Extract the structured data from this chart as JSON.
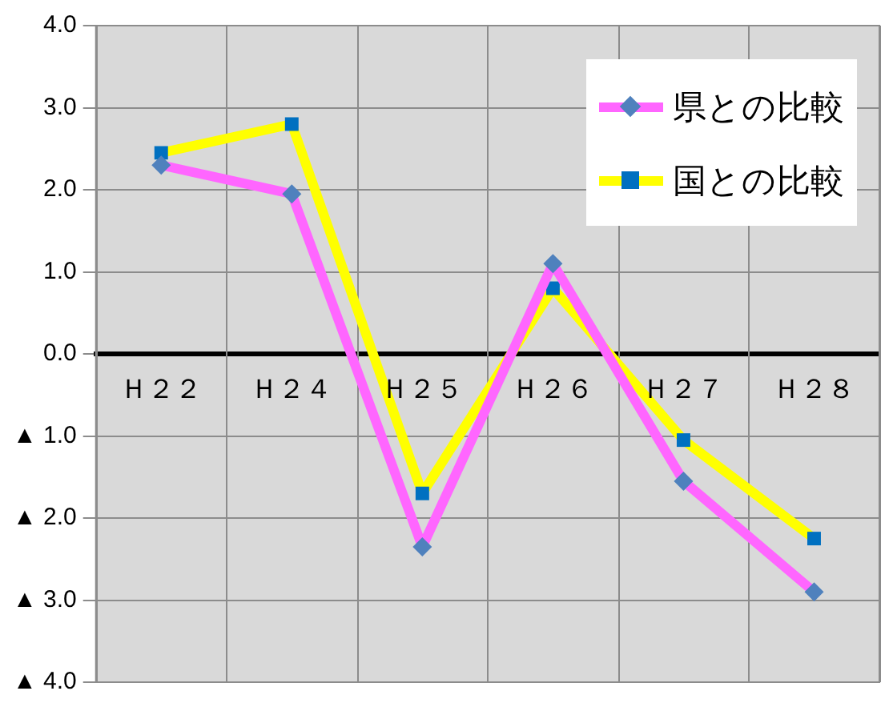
{
  "chart_data": {
    "type": "line",
    "categories": [
      "Ｈ２２",
      "Ｈ２４",
      "Ｈ２５",
      "Ｈ２６",
      "Ｈ２７",
      "Ｈ２８"
    ],
    "series": [
      {
        "name": "県との比較",
        "color": "#ff66ff",
        "colors": [
          "#4f81bd",
          "#4f81bd",
          "#4f81bd",
          "#4f81bd",
          "#4f81bd",
          "#4f81bd"
        ],
        "marker": "diamond",
        "values": [
          2.3,
          1.95,
          -2.35,
          1.1,
          -1.55,
          -2.9
        ]
      },
      {
        "name": "国との比較",
        "color": "#ffff00",
        "colors": [
          "#0070c0",
          "#0070c0",
          "#0070c0",
          "#0070c0",
          "#0070c0",
          "#0070c0"
        ],
        "marker": "square",
        "values": [
          2.45,
          2.8,
          -1.7,
          0.8,
          -1.05,
          -2.25
        ]
      }
    ],
    "ylim": [
      -4,
      4
    ],
    "yticks": [
      {
        "value": 4,
        "label": "4.0"
      },
      {
        "value": 3,
        "label": "3.0"
      },
      {
        "value": 2,
        "label": "2.0"
      },
      {
        "value": 1,
        "label": "1.0"
      },
      {
        "value": 0,
        "label": "0.0"
      },
      {
        "value": -1,
        "label": "▲ 1.0"
      },
      {
        "value": -2,
        "label": "▲ 2.0"
      },
      {
        "value": -3,
        "label": "▲ 3.0"
      },
      {
        "value": -4,
        "label": "▲ 4.0"
      }
    ],
    "grid": true,
    "legend": "top right"
  }
}
